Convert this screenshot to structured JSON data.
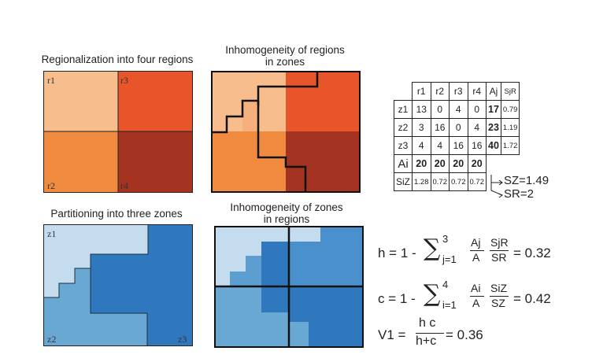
{
  "titles": {
    "regionalization": "Regionalization into four regions",
    "inhomogeneity_regions_line1": "Inhomogeneity of regions",
    "inhomogeneity_regions_line2": "in zones",
    "partitioning": "Partitioning into three zones",
    "inhomogeneity_zones_line1": "Inhomogeneity of zones",
    "inhomogeneity_zones_line2": "in regions"
  },
  "region_labels": [
    "r1",
    "r3",
    "r2",
    "r4"
  ],
  "zone_labels": [
    "z1",
    "z2",
    "z3"
  ],
  "colors": {
    "r1": "#f7bd8c",
    "r2": "#f08a3e",
    "r3": "#e8552a",
    "r4": "#a43421",
    "z1": "#c4dcee",
    "z2": "#6aa8d4",
    "z3": "#2f78bd",
    "z3_light": "#4a90cc"
  },
  "table": {
    "header": [
      "r1",
      "r2",
      "r3",
      "r4",
      "Aj",
      "SjR"
    ],
    "rows": [
      {
        "zone": "z1",
        "values": [
          "13",
          "0",
          "4",
          "0"
        ],
        "Aj": "17",
        "SjR": "0.79"
      },
      {
        "zone": "z2",
        "values": [
          "3",
          "16",
          "0",
          "4"
        ],
        "Aj": "23",
        "SjR": "1.19"
      },
      {
        "zone": "z3",
        "values": [
          "4",
          "4",
          "16",
          "16"
        ],
        "Aj": "40",
        "SjR": "1.72"
      }
    ],
    "Ai_label": "Ai",
    "Ai": [
      "20",
      "20",
      "20",
      "20"
    ],
    "SiZ_label": "SiZ",
    "SiZ": [
      "1.28",
      "0.72",
      "0.72",
      "0.72"
    ]
  },
  "annotations": {
    "SZ": "SZ=1.49",
    "SR": "SR=2"
  },
  "formulas": {
    "h": {
      "lhs": "h = 1 -",
      "upper": "3",
      "lower": "j=1",
      "frac1_num": "Aj",
      "frac1_den": "A",
      "frac2_num": "SjR",
      "frac2_den": "SR",
      "result": "= 0.32"
    },
    "c": {
      "lhs": "c = 1 -",
      "upper": "4",
      "lower": "i=1",
      "frac1_num": "Ai",
      "frac1_den": "A",
      "frac2_num": "SiZ",
      "frac2_den": "SZ",
      "result": "= 0.42"
    },
    "v": {
      "lhs": "V1 =",
      "num": "h c",
      "den": "h+c",
      "result": "= 0.36"
    }
  }
}
